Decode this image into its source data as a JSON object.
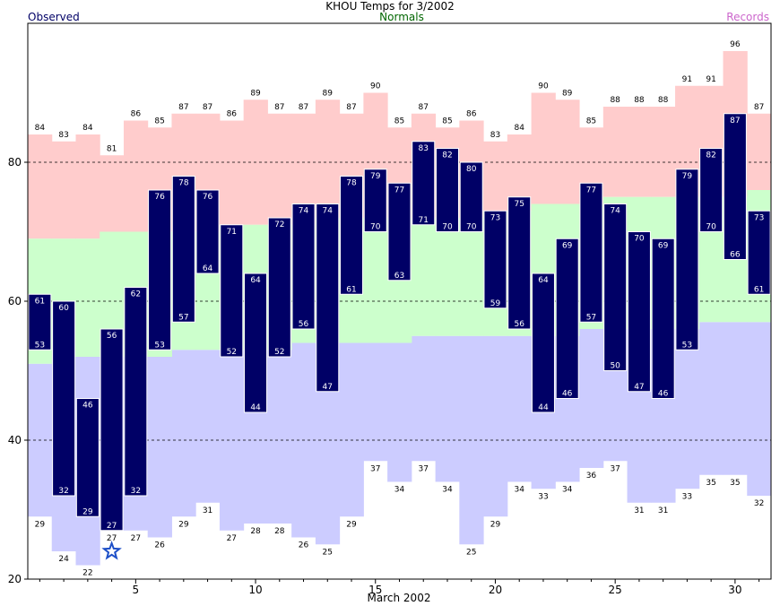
{
  "chart_data": {
    "type": "bar",
    "title": "KHOU Temps for 3/2002",
    "xlabel": "March 2002",
    "ylabel": "",
    "legend": {
      "observed": "Observed",
      "normals": "Normals",
      "records": "Records"
    },
    "colors": {
      "observed": "#000066",
      "normals": "#ccffcc",
      "record_high": "#ffcccc",
      "record_low": "#ccccff",
      "observed_label": "#ffffff",
      "normals_label": "#006600",
      "records_label": "#cc66cc",
      "marker": "#1e50c8"
    },
    "ylim": [
      20,
      100
    ],
    "xlim": [
      0.5,
      31.5
    ],
    "yticks": [
      20,
      40,
      60,
      80
    ],
    "xticks": [
      5,
      10,
      15,
      20,
      25,
      30
    ],
    "grid": true,
    "days": [
      1,
      2,
      3,
      4,
      5,
      6,
      7,
      8,
      9,
      10,
      11,
      12,
      13,
      14,
      15,
      16,
      17,
      18,
      19,
      20,
      21,
      22,
      23,
      24,
      25,
      26,
      27,
      28,
      29,
      30,
      31
    ],
    "observed_high": [
      61,
      60,
      46,
      56,
      62,
      76,
      78,
      76,
      71,
      64,
      72,
      74,
      74,
      78,
      79,
      77,
      83,
      82,
      80,
      73,
      75,
      64,
      69,
      77,
      74,
      70,
      69,
      79,
      82,
      87,
      73
    ],
    "observed_low": [
      53,
      32,
      29,
      27,
      32,
      53,
      57,
      64,
      52,
      44,
      52,
      56,
      47,
      61,
      70,
      63,
      71,
      70,
      70,
      59,
      56,
      44,
      46,
      57,
      50,
      47,
      46,
      53,
      70,
      66,
      61
    ],
    "normal_high": [
      69,
      69,
      69,
      70,
      70,
      70,
      70,
      70,
      71,
      71,
      71,
      71,
      72,
      72,
      72,
      72,
      72,
      72,
      72,
      73,
      73,
      74,
      74,
      74,
      75,
      75,
      75,
      75,
      75,
      75,
      76
    ],
    "normal_low": [
      51,
      52,
      52,
      52,
      52,
      52,
      53,
      53,
      53,
      53,
      53,
      54,
      54,
      54,
      54,
      54,
      55,
      55,
      55,
      55,
      55,
      55,
      55,
      56,
      56,
      56,
      56,
      56,
      57,
      57,
      57
    ],
    "record_high": [
      84,
      83,
      84,
      81,
      86,
      85,
      87,
      87,
      86,
      89,
      87,
      87,
      89,
      87,
      90,
      85,
      87,
      85,
      86,
      83,
      84,
      90,
      89,
      85,
      88,
      88,
      88,
      91,
      91,
      96,
      87
    ],
    "record_low": [
      29,
      24,
      22,
      27,
      27,
      26,
      29,
      31,
      27,
      28,
      28,
      26,
      25,
      29,
      37,
      34,
      37,
      34,
      25,
      29,
      34,
      33,
      34,
      36,
      37,
      31,
      31,
      33,
      35,
      35,
      32
    ],
    "markers": [
      {
        "day": 4,
        "value": 24,
        "shape": "star"
      }
    ]
  }
}
